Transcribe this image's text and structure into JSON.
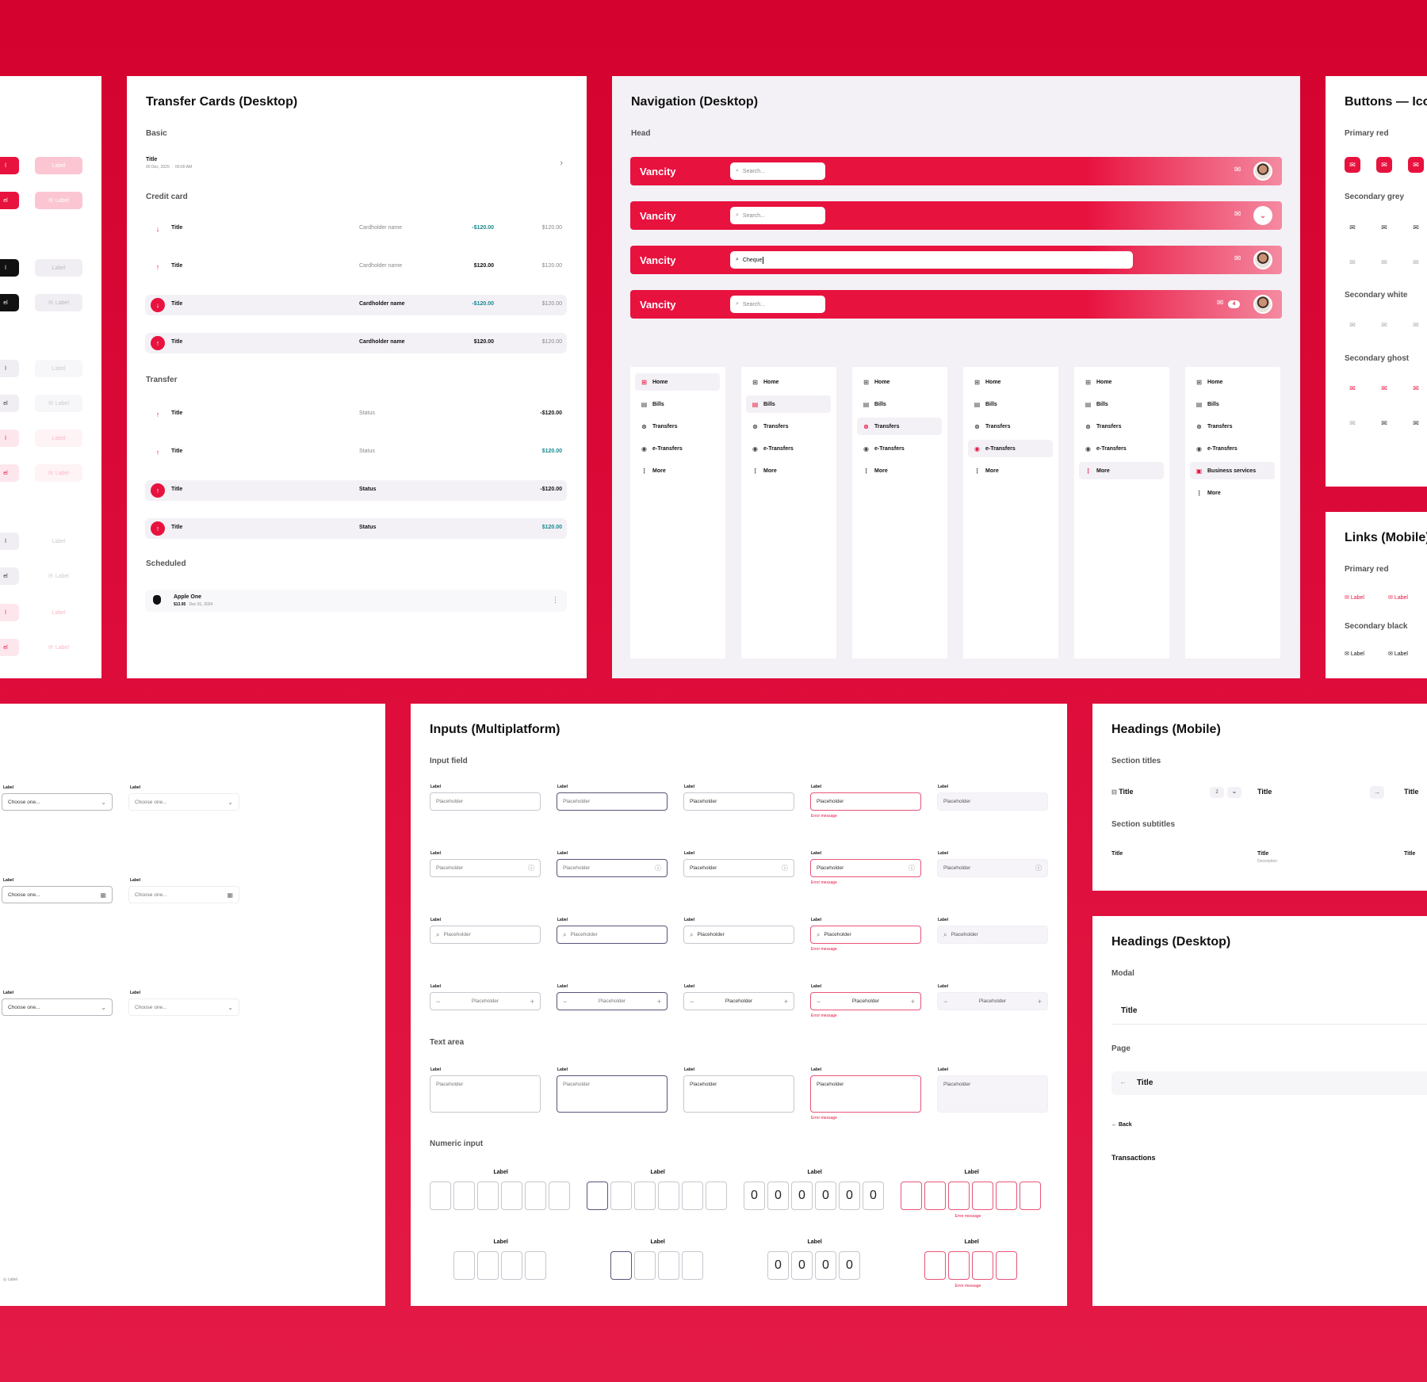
{
  "colors": {
    "brand_red": "#e8123f",
    "panel_grey": "#f3f1f6",
    "success_teal": "#17888f"
  },
  "buttons_left": {
    "label": "Label",
    "cut_label_a": "l",
    "cut_label_b": "el"
  },
  "transfer_cards": {
    "title": "Transfer Cards (Desktop)",
    "basic": {
      "section": "Basic",
      "title": "Title",
      "date": "00 Dec, 2025",
      "time": "00:00 AM"
    },
    "credit": {
      "section": "Credit card",
      "rows": [
        {
          "title": "Title",
          "name": "Cardholder name",
          "amount": "-$120.00",
          "balance": "$120.00"
        },
        {
          "title": "Title",
          "name": "Cardholder name",
          "amount": "$120.00",
          "balance": "$120.00"
        },
        {
          "title": "Title",
          "name": "Cardholder name",
          "amount": "-$120.00",
          "balance": "$120.00"
        },
        {
          "title": "Title",
          "name": "Cardholder name",
          "amount": "$120.00",
          "balance": "$120.00"
        }
      ]
    },
    "transfer": {
      "section": "Transfer",
      "rows": [
        {
          "title": "Title",
          "status": "Status",
          "amount": "-$120.00"
        },
        {
          "title": "Title",
          "status": "Status",
          "amount": "$120.00"
        },
        {
          "title": "Title",
          "status": "Status",
          "amount": "-$120.00"
        },
        {
          "title": "Title",
          "status": "Status",
          "amount": "$120.00"
        }
      ]
    },
    "scheduled": {
      "section": "Scheduled",
      "name": "Apple One",
      "amount": "$13.95",
      "date": "Dec 01, 2024"
    }
  },
  "navigation": {
    "title": "Navigation (Desktop)",
    "head_section": "Head",
    "brand": "Vancity",
    "search_placeholder": "Search...",
    "search_typed": "Cheque",
    "badge_count": "4",
    "menu": [
      "Home",
      "Bills",
      "Transfers",
      "e-Transfers",
      "More"
    ],
    "business_services": "Business services"
  },
  "buttons_icons": {
    "title": "Buttons — Ico",
    "primary_red": "Primary red",
    "secondary_grey": "Secondary grey",
    "secondary_white": "Secondary white",
    "secondary_ghost": "Secondary ghost"
  },
  "links_mobile": {
    "title": "Links (Mobile)",
    "primary_red": "Primary red",
    "secondary_black": "Secondary black",
    "label": "Label"
  },
  "selects": {
    "label": "Label",
    "value": "Choose one..."
  },
  "inputs": {
    "title": "Inputs (Multiplatform)",
    "input_field": "Input field",
    "text_area": "Text area",
    "numeric_input": "Numeric input",
    "label": "Label",
    "placeholder": "Placeholder",
    "error": "Error message",
    "digit": "0"
  },
  "headings_mobile": {
    "title": "Headings (Mobile)",
    "section_titles": "Section titles",
    "section_subtitles": "Section subtitles",
    "item_title": "Title",
    "count": "2",
    "description": "Description"
  },
  "headings_desktop": {
    "title": "Headings (Desktop)",
    "modal": "Modal",
    "page": "Page",
    "item_title": "Title",
    "back": "Back",
    "transactions": "Transactions"
  }
}
